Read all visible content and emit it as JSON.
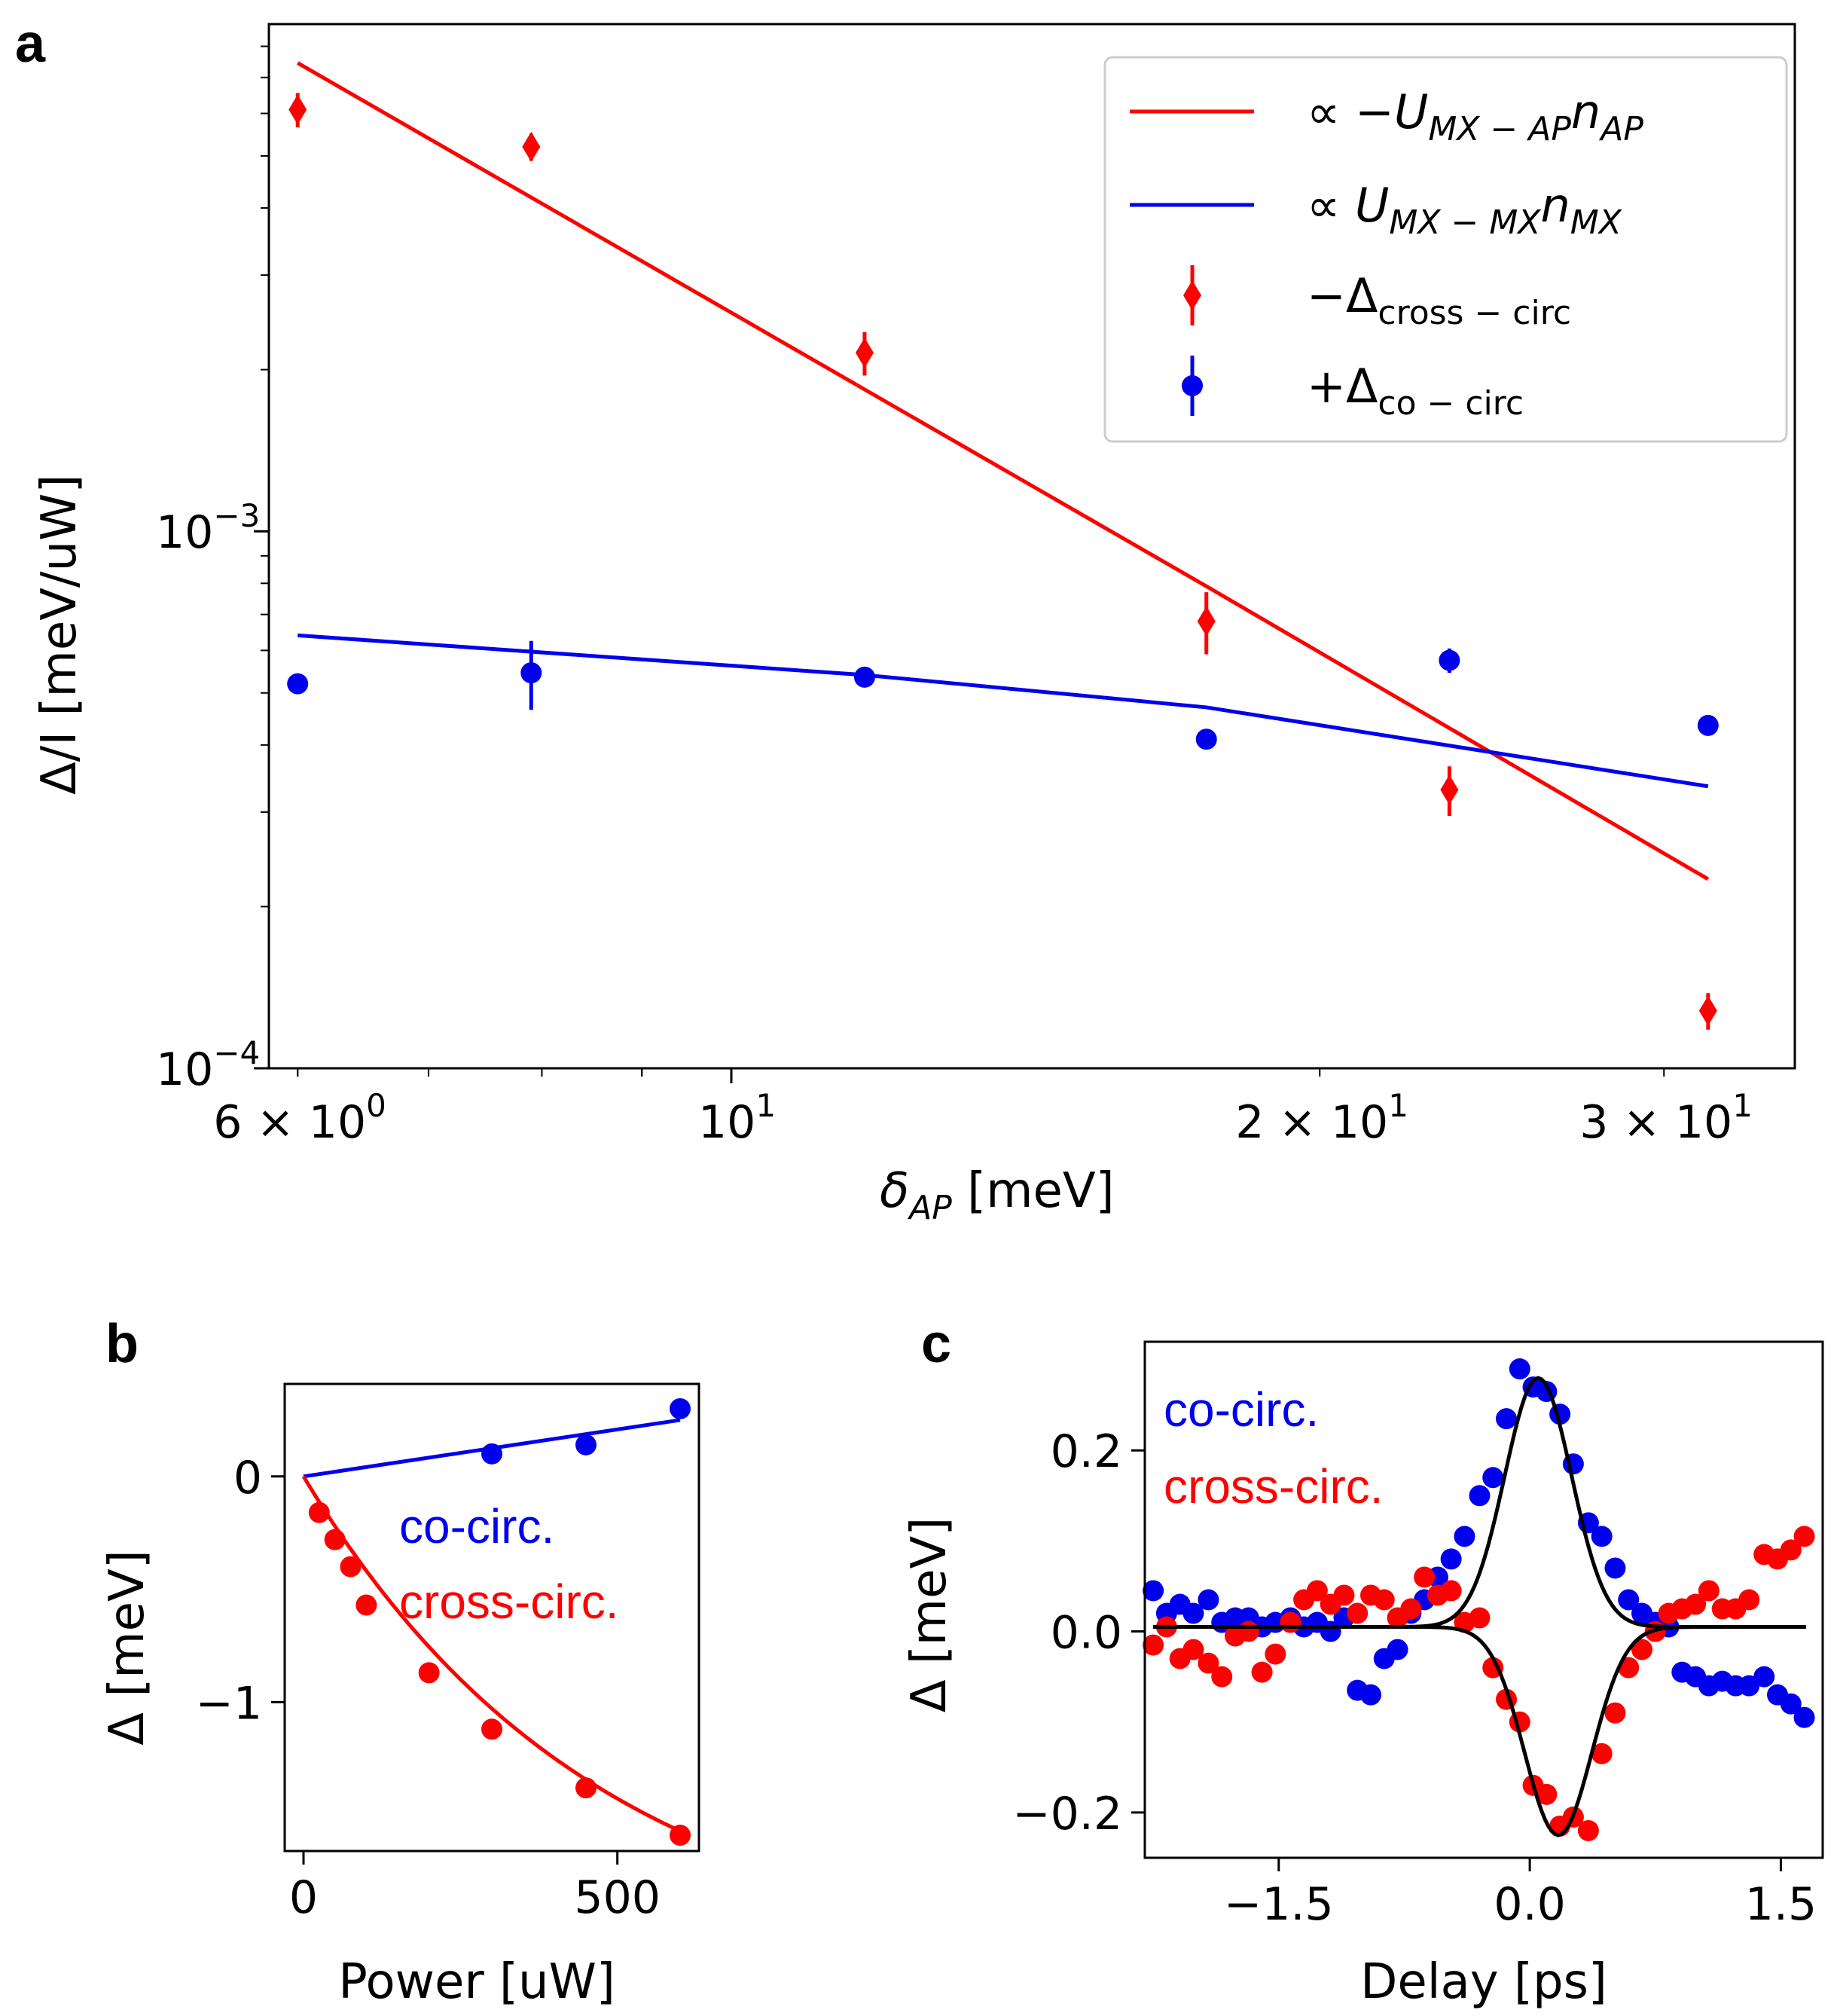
{
  "colors": {
    "red": "#ff0000",
    "blue": "#0000ee",
    "black": "#000000",
    "frame": "#000000"
  },
  "chart_data": [
    {
      "panel": "a",
      "type": "scatter",
      "xscale": "log",
      "yscale": "log",
      "xlim": [
        5.8,
        35
      ],
      "ylim": [
        0.0001,
        0.0088
      ],
      "xlabel": "δ",
      "xlabel_sub": "AP",
      "xlabel_unit": " [meV]",
      "ylabel": "Δ/I [meV/uW]",
      "xticks": [
        {
          "value": 6,
          "base": "6 × 10",
          "exp": "0"
        },
        {
          "value": 10,
          "base": "10",
          "exp": "1"
        },
        {
          "value": 20,
          "base": "2 × 10",
          "exp": "1"
        },
        {
          "value": 30,
          "base": "3 × 10",
          "exp": "1"
        }
      ],
      "yticks": [
        {
          "value": 0.001,
          "base": "10",
          "exp": "−3"
        },
        {
          "value": 0.0001,
          "base": "10",
          "exp": "−4"
        }
      ],
      "legend": {
        "position": "upper right",
        "entries": [
          {
            "pre": "∝ −",
            "sym": "U",
            "sub": "MX − AP",
            "sym2": "n",
            "sub2": "AP",
            "kind": "line",
            "color": "#ff0000"
          },
          {
            "pre": "∝ ",
            "sym": "U",
            "sub": "MX − MX",
            "sym2": "n",
            "sub2": "MX",
            "kind": "line",
            "color": "#0000ee"
          },
          {
            "pre": "−Δ",
            "sym": "",
            "sub": "cross − circ",
            "sym2": "",
            "sub2": "",
            "kind": "diamond",
            "color": "#ff0000"
          },
          {
            "pre": "+Δ",
            "sym": "",
            "sub": "co − circ",
            "sym2": "",
            "sub2": "",
            "kind": "circle",
            "color": "#0000ee"
          }
        ]
      },
      "series": [
        {
          "name": "−Δcross − circ",
          "kind": "diamond",
          "color": "#ff0000",
          "points": [
            {
              "x": 6.0,
              "y": 0.0061,
              "err": 0.00045
            },
            {
              "x": 7.9,
              "y": 0.0052,
              "err": 0.0003
            },
            {
              "x": 11.7,
              "y": 0.00215,
              "err": 0.0002
            },
            {
              "x": 17.5,
              "y": 0.00068,
              "err": 9e-05
            },
            {
              "x": 23.3,
              "y": 0.00033,
              "err": 3.5e-05
            },
            {
              "x": 31.6,
              "y": 0.000128,
              "err": 1e-05
            }
          ]
        },
        {
          "name": "+Δco − circ",
          "kind": "circle",
          "color": "#0000ee",
          "points": [
            {
              "x": 6.0,
              "y": 0.00052,
              "err": 2e-05
            },
            {
              "x": 7.9,
              "y": 0.000545,
              "err": 8e-05
            },
            {
              "x": 11.7,
              "y": 0.000535,
              "err": 1e-05
            },
            {
              "x": 17.5,
              "y": 0.00041,
              "err": 1e-05
            },
            {
              "x": 23.3,
              "y": 0.000575,
              "err": 3e-05
            },
            {
              "x": 31.6,
              "y": 0.000435,
              "err": 1e-05
            }
          ]
        }
      ],
      "fits": [
        {
          "name": "∝ −UMX − APnAP",
          "color": "#ff0000",
          "x": [
            6.0,
            17.5,
            31.6
          ],
          "y": [
            0.00745,
            0.00079,
            0.000225
          ]
        },
        {
          "name": "∝ UMX − MXnMX",
          "color": "#0000ee",
          "x": [
            6.0,
            11.7,
            17.5,
            31.6
          ],
          "y": [
            0.00064,
            0.00054,
            0.00047,
            0.000335
          ]
        }
      ]
    },
    {
      "panel": "b",
      "type": "scatter",
      "xlim": [
        -30,
        630
      ],
      "ylim": [
        -1.66,
        0.41
      ],
      "xlabel": "Power [uW]",
      "ylabel": "Δ [meV]",
      "xticks": [
        0,
        500
      ],
      "yticks": [
        0,
        -1
      ],
      "ytick_labels": [
        "0",
        "−1"
      ],
      "annotations": [
        {
          "text": "co-circ.",
          "color": "#0000ee"
        },
        {
          "text": "cross-circ.",
          "color": "#ff0000"
        }
      ],
      "series": [
        {
          "name": "co-circ.",
          "color": "#0000ee",
          "x": [
            300,
            450,
            600
          ],
          "y": [
            0.1,
            0.14,
            0.3
          ]
        },
        {
          "name": "cross-circ.",
          "color": "#ff0000",
          "x": [
            25,
            50,
            75,
            100,
            200,
            300,
            450,
            600
          ],
          "y": [
            -0.16,
            -0.28,
            -0.4,
            -0.57,
            -0.87,
            -1.12,
            -1.38,
            -1.59
          ]
        }
      ],
      "fits": [
        {
          "name": "co-circ.",
          "color": "#0000ee",
          "x": [
            0,
            600
          ],
          "y": [
            0,
            0.25
          ]
        },
        {
          "name": "cross-circ.",
          "color": "#ff0000",
          "model": "exp",
          "A": 2.18,
          "x0": 470,
          "xmax": 600
        }
      ]
    },
    {
      "panel": "c",
      "type": "scatter",
      "xlim": [
        -2.3,
        1.75
      ],
      "ylim": [
        -0.25,
        0.32
      ],
      "xlabel": "Delay [ps]",
      "ylabel": "Δ [meV]",
      "xticks": [
        -1.5,
        0.0,
        1.5
      ],
      "xtick_labels": [
        "−1.5",
        "0.0",
        "1.5"
      ],
      "yticks": [
        -0.2,
        0.0,
        0.2
      ],
      "ytick_labels": [
        "−0.2",
        "0.0",
        "0.2"
      ],
      "annotations": [
        {
          "text": "co-circ.",
          "color": "#0000ee"
        },
        {
          "text": "cross-circ.",
          "color": "#ff0000"
        }
      ],
      "series": [
        {
          "name": "co-circ.",
          "color": "#0000ee",
          "x": [
            -2.25,
            -2.17,
            -2.09,
            -2.01,
            -1.92,
            -1.84,
            -1.76,
            -1.68,
            -1.6,
            -1.52,
            -1.43,
            -1.35,
            -1.27,
            -1.19,
            -1.11,
            -1.03,
            -0.95,
            -0.87,
            -0.79,
            -0.71,
            -0.63,
            -0.55,
            -0.47,
            -0.39,
            -0.3,
            -0.22,
            -0.14,
            -0.06,
            0.02,
            0.1,
            0.18,
            0.26,
            0.35,
            0.43,
            0.51,
            0.59,
            0.67,
            0.75,
            0.83,
            0.91,
            0.99,
            1.07,
            1.15,
            1.23,
            1.31,
            1.4,
            1.48,
            1.56,
            1.64
          ],
          "y": [
            0.045,
            0.02,
            0.03,
            0.02,
            0.035,
            0.01,
            0.015,
            0.015,
            0.005,
            0.01,
            0.015,
            0.005,
            0.01,
            0.0,
            0.015,
            -0.065,
            -0.07,
            -0.03,
            -0.02,
            0.02,
            0.035,
            0.06,
            0.08,
            0.105,
            0.15,
            0.17,
            0.235,
            0.29,
            0.27,
            0.265,
            0.24,
            0.185,
            0.12,
            0.105,
            0.07,
            0.035,
            0.02,
            0.01,
            0.005,
            -0.045,
            -0.05,
            -0.06,
            -0.055,
            -0.06,
            -0.06,
            -0.05,
            -0.07,
            -0.08,
            -0.095
          ]
        },
        {
          "name": "cross-circ.",
          "color": "#ff0000",
          "x": [
            -2.25,
            -2.17,
            -2.09,
            -2.01,
            -1.92,
            -1.84,
            -1.76,
            -1.68,
            -1.6,
            -1.52,
            -1.43,
            -1.35,
            -1.27,
            -1.19,
            -1.11,
            -1.03,
            -0.95,
            -0.87,
            -0.79,
            -0.71,
            -0.63,
            -0.55,
            -0.47,
            -0.39,
            -0.3,
            -0.22,
            -0.14,
            -0.06,
            0.02,
            0.1,
            0.18,
            0.26,
            0.35,
            0.43,
            0.51,
            0.59,
            0.67,
            0.75,
            0.83,
            0.91,
            0.99,
            1.07,
            1.15,
            1.23,
            1.31,
            1.4,
            1.48,
            1.56,
            1.64
          ],
          "y": [
            -0.015,
            0.005,
            -0.03,
            -0.02,
            -0.035,
            -0.05,
            -0.005,
            0.0,
            -0.045,
            -0.025,
            0.01,
            0.035,
            0.045,
            0.03,
            0.04,
            0.02,
            0.04,
            0.035,
            0.015,
            0.025,
            0.06,
            0.04,
            0.045,
            0.01,
            0.015,
            -0.04,
            -0.075,
            -0.1,
            -0.17,
            -0.18,
            -0.215,
            -0.205,
            -0.22,
            -0.135,
            -0.09,
            -0.04,
            -0.02,
            0.0,
            0.02,
            0.025,
            0.03,
            0.045,
            0.025,
            0.025,
            0.035,
            0.085,
            0.08,
            0.09,
            0.105
          ]
        }
      ],
      "fits": [
        {
          "name": "co-circ.",
          "color": "#000000",
          "model": "gauss",
          "A": 0.275,
          "mu": 0.05,
          "sigma": 0.2,
          "offset": 0.005
        },
        {
          "name": "cross-circ.",
          "color": "#000000",
          "model": "gauss",
          "A": -0.23,
          "mu": 0.17,
          "sigma": 0.2,
          "offset": 0.005
        }
      ]
    }
  ],
  "labels": {
    "a": "a",
    "b": "b",
    "c": "c"
  }
}
